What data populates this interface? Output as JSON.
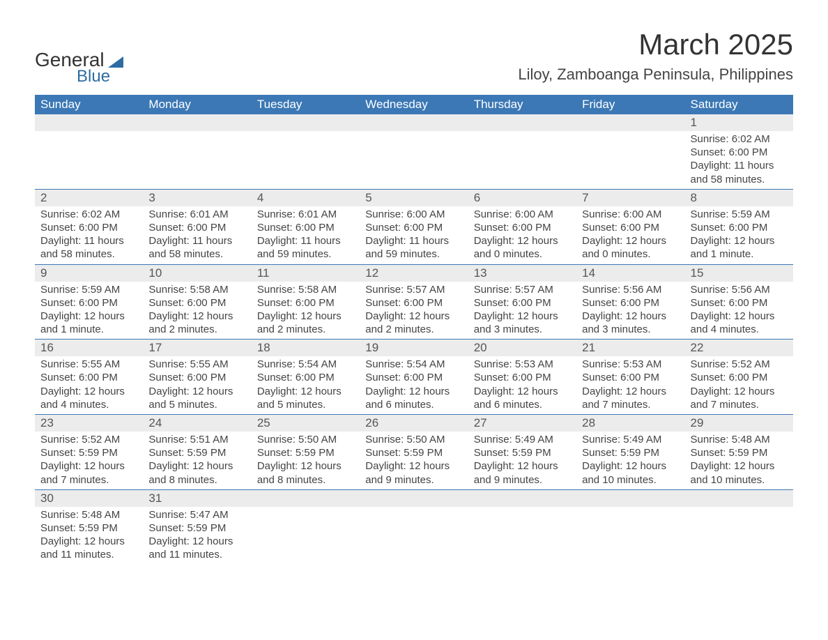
{
  "logo": {
    "text1": "General",
    "text2": "Blue"
  },
  "title": "March 2025",
  "location": "Liloy, Zamboanga Peninsula, Philippines",
  "colors": {
    "header_bg": "#3b78b5",
    "header_fg": "#ffffff",
    "daynum_bg": "#ececec",
    "daynum_fg": "#555555",
    "text": "#444444",
    "logo_blue": "#2d6ca2",
    "background": "#ffffff"
  },
  "typography": {
    "title_fontsize": 42,
    "location_fontsize": 22,
    "header_fontsize": 17,
    "daynum_fontsize": 17,
    "body_fontsize": 15
  },
  "day_headers": [
    "Sunday",
    "Monday",
    "Tuesday",
    "Wednesday",
    "Thursday",
    "Friday",
    "Saturday"
  ],
  "weeks": [
    [
      null,
      null,
      null,
      null,
      null,
      null,
      {
        "n": "1",
        "sr": "Sunrise: 6:02 AM",
        "ss": "Sunset: 6:00 PM",
        "dl": "Daylight: 11 hours and 58 minutes."
      }
    ],
    [
      {
        "n": "2",
        "sr": "Sunrise: 6:02 AM",
        "ss": "Sunset: 6:00 PM",
        "dl": "Daylight: 11 hours and 58 minutes."
      },
      {
        "n": "3",
        "sr": "Sunrise: 6:01 AM",
        "ss": "Sunset: 6:00 PM",
        "dl": "Daylight: 11 hours and 58 minutes."
      },
      {
        "n": "4",
        "sr": "Sunrise: 6:01 AM",
        "ss": "Sunset: 6:00 PM",
        "dl": "Daylight: 11 hours and 59 minutes."
      },
      {
        "n": "5",
        "sr": "Sunrise: 6:00 AM",
        "ss": "Sunset: 6:00 PM",
        "dl": "Daylight: 11 hours and 59 minutes."
      },
      {
        "n": "6",
        "sr": "Sunrise: 6:00 AM",
        "ss": "Sunset: 6:00 PM",
        "dl": "Daylight: 12 hours and 0 minutes."
      },
      {
        "n": "7",
        "sr": "Sunrise: 6:00 AM",
        "ss": "Sunset: 6:00 PM",
        "dl": "Daylight: 12 hours and 0 minutes."
      },
      {
        "n": "8",
        "sr": "Sunrise: 5:59 AM",
        "ss": "Sunset: 6:00 PM",
        "dl": "Daylight: 12 hours and 1 minute."
      }
    ],
    [
      {
        "n": "9",
        "sr": "Sunrise: 5:59 AM",
        "ss": "Sunset: 6:00 PM",
        "dl": "Daylight: 12 hours and 1 minute."
      },
      {
        "n": "10",
        "sr": "Sunrise: 5:58 AM",
        "ss": "Sunset: 6:00 PM",
        "dl": "Daylight: 12 hours and 2 minutes."
      },
      {
        "n": "11",
        "sr": "Sunrise: 5:58 AM",
        "ss": "Sunset: 6:00 PM",
        "dl": "Daylight: 12 hours and 2 minutes."
      },
      {
        "n": "12",
        "sr": "Sunrise: 5:57 AM",
        "ss": "Sunset: 6:00 PM",
        "dl": "Daylight: 12 hours and 2 minutes."
      },
      {
        "n": "13",
        "sr": "Sunrise: 5:57 AM",
        "ss": "Sunset: 6:00 PM",
        "dl": "Daylight: 12 hours and 3 minutes."
      },
      {
        "n": "14",
        "sr": "Sunrise: 5:56 AM",
        "ss": "Sunset: 6:00 PM",
        "dl": "Daylight: 12 hours and 3 minutes."
      },
      {
        "n": "15",
        "sr": "Sunrise: 5:56 AM",
        "ss": "Sunset: 6:00 PM",
        "dl": "Daylight: 12 hours and 4 minutes."
      }
    ],
    [
      {
        "n": "16",
        "sr": "Sunrise: 5:55 AM",
        "ss": "Sunset: 6:00 PM",
        "dl": "Daylight: 12 hours and 4 minutes."
      },
      {
        "n": "17",
        "sr": "Sunrise: 5:55 AM",
        "ss": "Sunset: 6:00 PM",
        "dl": "Daylight: 12 hours and 5 minutes."
      },
      {
        "n": "18",
        "sr": "Sunrise: 5:54 AM",
        "ss": "Sunset: 6:00 PM",
        "dl": "Daylight: 12 hours and 5 minutes."
      },
      {
        "n": "19",
        "sr": "Sunrise: 5:54 AM",
        "ss": "Sunset: 6:00 PM",
        "dl": "Daylight: 12 hours and 6 minutes."
      },
      {
        "n": "20",
        "sr": "Sunrise: 5:53 AM",
        "ss": "Sunset: 6:00 PM",
        "dl": "Daylight: 12 hours and 6 minutes."
      },
      {
        "n": "21",
        "sr": "Sunrise: 5:53 AM",
        "ss": "Sunset: 6:00 PM",
        "dl": "Daylight: 12 hours and 7 minutes."
      },
      {
        "n": "22",
        "sr": "Sunrise: 5:52 AM",
        "ss": "Sunset: 6:00 PM",
        "dl": "Daylight: 12 hours and 7 minutes."
      }
    ],
    [
      {
        "n": "23",
        "sr": "Sunrise: 5:52 AM",
        "ss": "Sunset: 5:59 PM",
        "dl": "Daylight: 12 hours and 7 minutes."
      },
      {
        "n": "24",
        "sr": "Sunrise: 5:51 AM",
        "ss": "Sunset: 5:59 PM",
        "dl": "Daylight: 12 hours and 8 minutes."
      },
      {
        "n": "25",
        "sr": "Sunrise: 5:50 AM",
        "ss": "Sunset: 5:59 PM",
        "dl": "Daylight: 12 hours and 8 minutes."
      },
      {
        "n": "26",
        "sr": "Sunrise: 5:50 AM",
        "ss": "Sunset: 5:59 PM",
        "dl": "Daylight: 12 hours and 9 minutes."
      },
      {
        "n": "27",
        "sr": "Sunrise: 5:49 AM",
        "ss": "Sunset: 5:59 PM",
        "dl": "Daylight: 12 hours and 9 minutes."
      },
      {
        "n": "28",
        "sr": "Sunrise: 5:49 AM",
        "ss": "Sunset: 5:59 PM",
        "dl": "Daylight: 12 hours and 10 minutes."
      },
      {
        "n": "29",
        "sr": "Sunrise: 5:48 AM",
        "ss": "Sunset: 5:59 PM",
        "dl": "Daylight: 12 hours and 10 minutes."
      }
    ],
    [
      {
        "n": "30",
        "sr": "Sunrise: 5:48 AM",
        "ss": "Sunset: 5:59 PM",
        "dl": "Daylight: 12 hours and 11 minutes."
      },
      {
        "n": "31",
        "sr": "Sunrise: 5:47 AM",
        "ss": "Sunset: 5:59 PM",
        "dl": "Daylight: 12 hours and 11 minutes."
      },
      null,
      null,
      null,
      null,
      null
    ]
  ]
}
